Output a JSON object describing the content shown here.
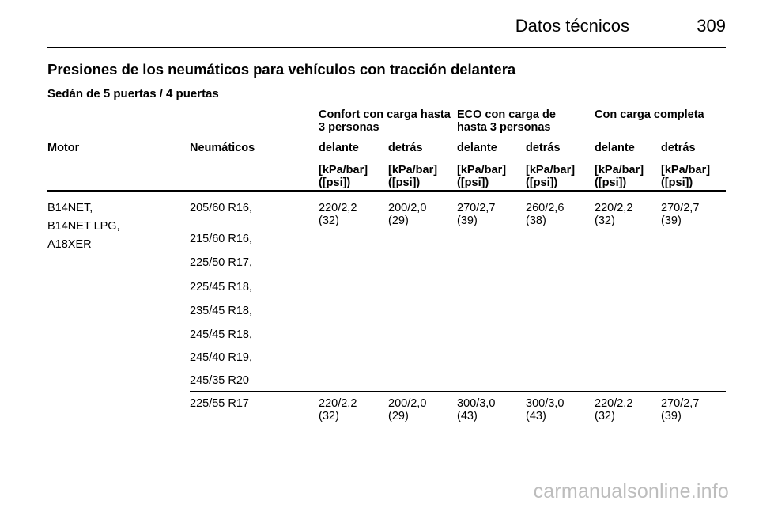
{
  "header": {
    "title": "Datos técnicos",
    "page_number": "309"
  },
  "section_title": "Presiones de los neumáticos para vehículos con tracción delantera",
  "subsection_title": "Sedán de 5 puertas / 4 puertas",
  "table": {
    "groups": [
      {
        "line1": "Confort con carga hasta",
        "line2": "3 personas"
      },
      {
        "line1": "ECO con carga de",
        "line2": "hasta 3 personas"
      },
      {
        "line1": "Con carga completa",
        "line2": ""
      }
    ],
    "col_motor": "Motor",
    "col_tires": "Neumáticos",
    "sub_headers": [
      "delante",
      "detrás",
      "delante",
      "detrás",
      "delante",
      "detrás"
    ],
    "unit_line1": "[kPa/bar]",
    "unit_line2": "([psi])",
    "engines": [
      "B14NET,",
      "B14NET LPG,",
      "A18XER"
    ],
    "tires_block1": [
      "205/60 R16,",
      "215/60 R16,",
      "225/50 R17,",
      "225/45 R18,",
      "235/45 R18,",
      "245/45 R18,",
      "245/40 R19,",
      "245/35 R20"
    ],
    "values_block1": [
      {
        "top": "220/2,2",
        "bot": "(32)"
      },
      {
        "top": "200/2,0",
        "bot": "(29)"
      },
      {
        "top": "270/2,7",
        "bot": "(39)"
      },
      {
        "top": "260/2,6",
        "bot": "(38)"
      },
      {
        "top": "220/2,2",
        "bot": "(32)"
      },
      {
        "top": "270/2,7",
        "bot": "(39)"
      }
    ],
    "tire_block2": "225/55 R17",
    "values_block2": [
      {
        "top": "220/2,2",
        "bot": "(32)"
      },
      {
        "top": "200/2,0",
        "bot": "(29)"
      },
      {
        "top": "300/3,0",
        "bot": "(43)"
      },
      {
        "top": "300/3,0",
        "bot": "(43)"
      },
      {
        "top": "220/2,2",
        "bot": "(32)"
      },
      {
        "top": "270/2,7",
        "bot": "(39)"
      }
    ]
  },
  "watermark": "carmanualsonline.info"
}
